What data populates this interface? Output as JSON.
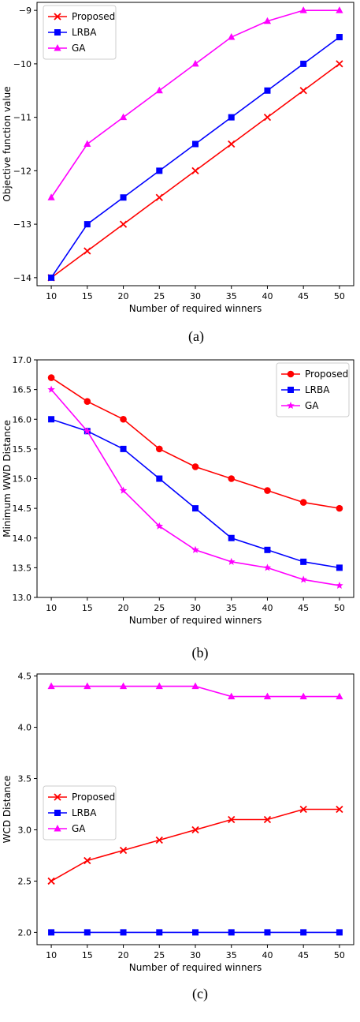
{
  "chart_data": [
    {
      "type": "line",
      "caption": "(a)",
      "xlabel": "Number of required winners",
      "ylabel": "Objective function value",
      "x": [
        10,
        15,
        20,
        25,
        30,
        35,
        40,
        45,
        50
      ],
      "xticks": [
        "10",
        "15",
        "20",
        "25",
        "30",
        "35",
        "40",
        "45",
        "50"
      ],
      "ylim": [
        -14.15,
        -8.85
      ],
      "yticks": [
        -14,
        -13,
        -12,
        -11,
        -10,
        -9
      ],
      "ytick_labels": [
        "−14",
        "−13",
        "−12",
        "−11",
        "−10",
        "−9"
      ],
      "grid": false,
      "legend": "top-left",
      "series": [
        {
          "name": "Proposed",
          "color": "#ff0000",
          "marker": "x",
          "values": [
            -14,
            -13.5,
            -13,
            -12.5,
            -12,
            -11.5,
            -11,
            -10.5,
            -10
          ]
        },
        {
          "name": "LRBA",
          "color": "#0000ff",
          "marker": "square",
          "values": [
            -14,
            -13,
            -12.5,
            -12,
            -11.5,
            -11,
            -10.5,
            -10,
            -9.5
          ]
        },
        {
          "name": "GA",
          "color": "#ff00ff",
          "marker": "triangle",
          "values": [
            -12.5,
            -11.5,
            -11,
            -10.5,
            -10,
            -9.5,
            -9.2,
            -9,
            -9
          ]
        }
      ]
    },
    {
      "type": "line",
      "caption": "(b)",
      "xlabel": "Number of required winners",
      "ylabel": "Minimum WWD Distance",
      "x": [
        10,
        15,
        20,
        25,
        30,
        35,
        40,
        45,
        50
      ],
      "xticks": [
        "10",
        "15",
        "20",
        "25",
        "30",
        "35",
        "40",
        "45",
        "50"
      ],
      "ylim": [
        13.0,
        17.0
      ],
      "yticks": [
        13.0,
        13.5,
        14.0,
        14.5,
        15.0,
        15.5,
        16.0,
        16.5,
        17.0
      ],
      "ytick_labels": [
        "13.0",
        "13.5",
        "14.0",
        "14.5",
        "15.0",
        "15.5",
        "16.0",
        "16.5",
        "17.0"
      ],
      "grid": false,
      "legend": "top-right",
      "series": [
        {
          "name": "Proposed",
          "color": "#ff0000",
          "marker": "circle",
          "values": [
            16.7,
            16.3,
            16.0,
            15.5,
            15.2,
            15.0,
            14.8,
            14.6,
            14.5
          ]
        },
        {
          "name": "LRBA",
          "color": "#0000ff",
          "marker": "square",
          "values": [
            16.0,
            15.8,
            15.5,
            15.0,
            14.5,
            14.0,
            13.8,
            13.6,
            13.5
          ]
        },
        {
          "name": "GA",
          "color": "#ff00ff",
          "marker": "star",
          "values": [
            16.5,
            15.8,
            14.8,
            14.2,
            13.8,
            13.6,
            13.5,
            13.3,
            13.2
          ]
        }
      ]
    },
    {
      "type": "line",
      "caption": "(c)",
      "xlabel": "Number of required winners",
      "ylabel": "WCD Distance",
      "x": [
        10,
        15,
        20,
        25,
        30,
        35,
        40,
        45,
        50
      ],
      "xticks": [
        "10",
        "15",
        "20",
        "25",
        "30",
        "35",
        "40",
        "45",
        "50"
      ],
      "ylim": [
        1.88,
        4.52
      ],
      "yticks": [
        2.0,
        2.5,
        3.0,
        3.5,
        4.0,
        4.5
      ],
      "ytick_labels": [
        "2.0",
        "2.5",
        "3.0",
        "3.5",
        "4.0",
        "4.5"
      ],
      "grid": false,
      "legend": "center-left",
      "series": [
        {
          "name": "Proposed",
          "color": "#ff0000",
          "marker": "x",
          "values": [
            2.5,
            2.7,
            2.8,
            2.9,
            3.0,
            3.1,
            3.1,
            3.2,
            3.2
          ]
        },
        {
          "name": "LRBA",
          "color": "#0000ff",
          "marker": "square",
          "values": [
            2.0,
            2.0,
            2.0,
            2.0,
            2.0,
            2.0,
            2.0,
            2.0,
            2.0
          ]
        },
        {
          "name": "GA",
          "color": "#ff00ff",
          "marker": "triangle",
          "values": [
            4.4,
            4.4,
            4.4,
            4.4,
            4.4,
            4.3,
            4.3,
            4.3,
            4.3
          ]
        }
      ]
    }
  ]
}
